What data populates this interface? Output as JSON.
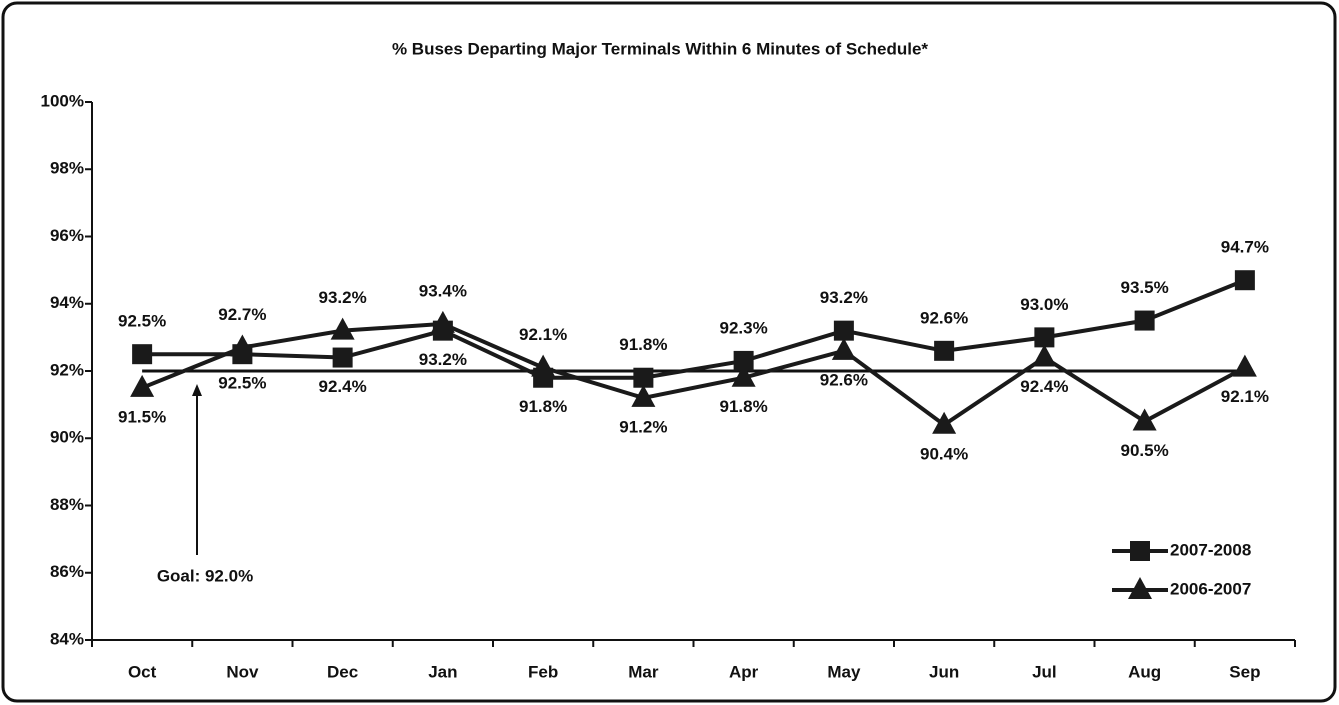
{
  "chart_data": {
    "type": "line",
    "title": "% Buses Departing Major Terminals Within 6 Minutes of Schedule*",
    "categories": [
      "Oct",
      "Nov",
      "Dec",
      "Jan",
      "Feb",
      "Mar",
      "Apr",
      "May",
      "Jun",
      "Jul",
      "Aug",
      "Sep"
    ],
    "series": [
      {
        "name": "2007-2008",
        "color": "#1a1a1a",
        "marker": "square",
        "values": [
          92.5,
          92.5,
          92.4,
          93.2,
          91.8,
          91.8,
          92.3,
          93.2,
          92.6,
          93.0,
          93.5,
          94.7
        ],
        "value_labels": [
          "92.5%",
          "92.5%",
          "92.4%",
          "93.2%",
          "91.8%",
          "91.8%",
          "92.3%",
          "93.2%",
          "92.6%",
          "93.0%",
          "93.5%",
          "94.7%"
        ]
      },
      {
        "name": "2006-2007",
        "color": "#1a1a1a",
        "marker": "triangle",
        "values": [
          91.5,
          92.7,
          93.2,
          93.4,
          92.1,
          91.2,
          91.8,
          92.6,
          90.4,
          92.4,
          90.5,
          92.1
        ],
        "value_labels": [
          "91.5%",
          "92.7%",
          "93.2%",
          "93.4%",
          "92.1%",
          "91.2%",
          "91.8%",
          "92.6%",
          "90.4%",
          "92.4%",
          "90.5%",
          "92.1%"
        ]
      }
    ],
    "goal": {
      "value": 92,
      "label": "Goal: 92.0%"
    },
    "ylim": [
      84,
      100
    ],
    "yticks": [
      {
        "value": 84,
        "label": "84%"
      },
      {
        "value": 86,
        "label": "86%"
      },
      {
        "value": 88,
        "label": "88%"
      },
      {
        "value": 90,
        "label": "90%"
      },
      {
        "value": 92,
        "label": "92%"
      },
      {
        "value": 94,
        "label": "94%"
      },
      {
        "value": 96,
        "label": "96%"
      },
      {
        "value": 98,
        "label": "98%"
      },
      {
        "value": 100,
        "label": "100%"
      }
    ],
    "legend": "bottom-right"
  }
}
